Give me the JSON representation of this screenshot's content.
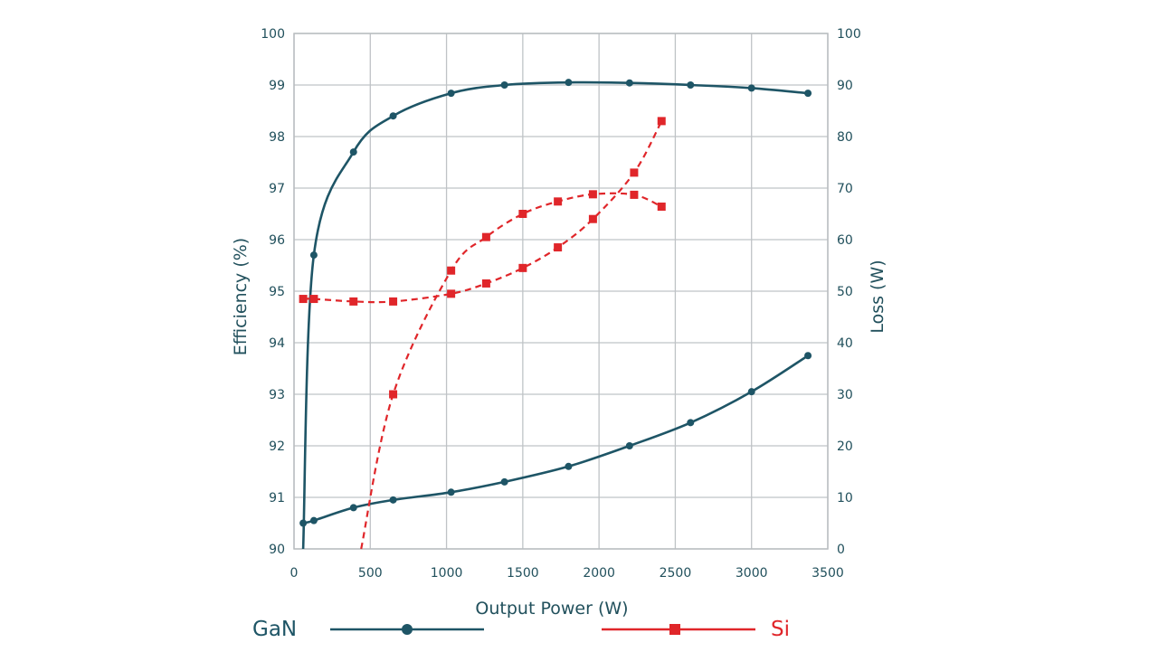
{
  "chart_data": {
    "type": "line",
    "title": "",
    "xlabel": "Output Power (W)",
    "ylabel": "Efficiency (%)",
    "y2label": "Loss (W)",
    "xlim": [
      0,
      3500
    ],
    "ylim": [
      90,
      100
    ],
    "y2lim": [
      0,
      100
    ],
    "grid": true,
    "x_ticks": [
      "0",
      "500",
      "1000",
      "1500",
      "2000",
      "2500",
      "3000",
      "3500"
    ],
    "y_ticks": [
      "90",
      "91",
      "92",
      "93",
      "94",
      "95",
      "96",
      "97",
      "98",
      "99",
      "100"
    ],
    "y2_ticks": [
      "0",
      "10",
      "20",
      "30",
      "40",
      "50",
      "60",
      "70",
      "80",
      "90",
      "100"
    ],
    "colors": {
      "GaN": "#1e5566",
      "Si": "#e0262a"
    },
    "series": [
      {
        "name": "GaN",
        "metric": "efficiency",
        "axis": "left",
        "marker": "circle",
        "style": "solid",
        "x": [
          60,
          130,
          390,
          650,
          1030,
          1380,
          1800,
          2200,
          2600,
          3000,
          3370
        ],
        "y": [
          90,
          95.7,
          97.7,
          98.4,
          98.84,
          99.0,
          99.05,
          99.04,
          99.0,
          98.94,
          98.84
        ]
      },
      {
        "name": "GaN",
        "metric": "loss",
        "axis": "right",
        "marker": "circle",
        "style": "solid",
        "x": [
          60,
          130,
          390,
          650,
          1030,
          1380,
          1800,
          2200,
          2600,
          3000,
          3370
        ],
        "y": [
          5,
          5.5,
          8,
          9.5,
          11,
          13,
          16,
          20,
          24.5,
          30.5,
          37.5
        ]
      },
      {
        "name": "Si",
        "metric": "efficiency",
        "axis": "left",
        "marker": "square",
        "style": "dashed",
        "x": [
          440,
          650,
          1030,
          1260,
          1500,
          1730,
          1960,
          2230,
          2410
        ],
        "y": [
          90,
          93,
          95.4,
          96.05,
          96.5,
          96.74,
          96.88,
          96.87,
          96.64
        ]
      },
      {
        "name": "Si",
        "metric": "loss",
        "axis": "right",
        "marker": "square",
        "style": "dashed",
        "x": [
          60,
          130,
          390,
          650,
          1030,
          1260,
          1500,
          1730,
          1960,
          2230,
          2410
        ],
        "y": [
          48.5,
          48.5,
          48,
          48,
          49.5,
          51.5,
          54.5,
          58.5,
          64,
          73,
          83
        ]
      }
    ],
    "legend": [
      {
        "label": "GaN",
        "marker": "circle",
        "style": "solid"
      },
      {
        "label": "Si",
        "marker": "square",
        "style": "dashed"
      }
    ],
    "legend_position": "bottom"
  }
}
